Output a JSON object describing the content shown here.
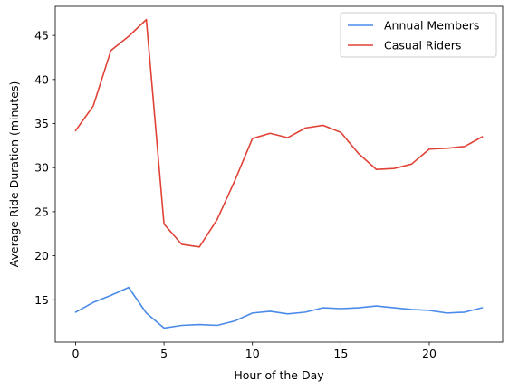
{
  "chart_data": {
    "type": "line",
    "title": "",
    "xlabel": "Hour of the Day",
    "ylabel": "Average Ride Duration (minutes)",
    "xlim": [
      -1.15,
      24.15
    ],
    "ylim": [
      10.2,
      48.3
    ],
    "xticks": [
      0,
      5,
      10,
      15,
      20
    ],
    "yticks": [
      15,
      20,
      25,
      30,
      35,
      40,
      45
    ],
    "grid": false,
    "legend_position": "top-right",
    "x": [
      0,
      1,
      2,
      3,
      4,
      5,
      6,
      7,
      8,
      9,
      10,
      11,
      12,
      13,
      14,
      15,
      16,
      17,
      18,
      19,
      20,
      21,
      22,
      23
    ],
    "series": [
      {
        "name": "Annual Members",
        "color": "#4a8ae8",
        "values": [
          13.6,
          14.7,
          15.5,
          16.4,
          13.5,
          11.8,
          12.1,
          12.2,
          12.1,
          12.6,
          13.5,
          13.7,
          13.4,
          13.6,
          14.1,
          14.0,
          14.1,
          14.3,
          14.1,
          13.9,
          13.8,
          13.5,
          13.6,
          14.1
        ]
      },
      {
        "name": "Casual Riders",
        "color": "#e04236",
        "values": [
          34.2,
          37.0,
          43.3,
          44.9,
          46.8,
          23.6,
          21.3,
          21.0,
          24.1,
          28.5,
          33.3,
          33.9,
          33.4,
          34.5,
          34.8,
          34.0,
          31.6,
          29.8,
          29.9,
          30.4,
          32.1,
          32.2,
          32.4,
          33.5
        ]
      }
    ]
  }
}
